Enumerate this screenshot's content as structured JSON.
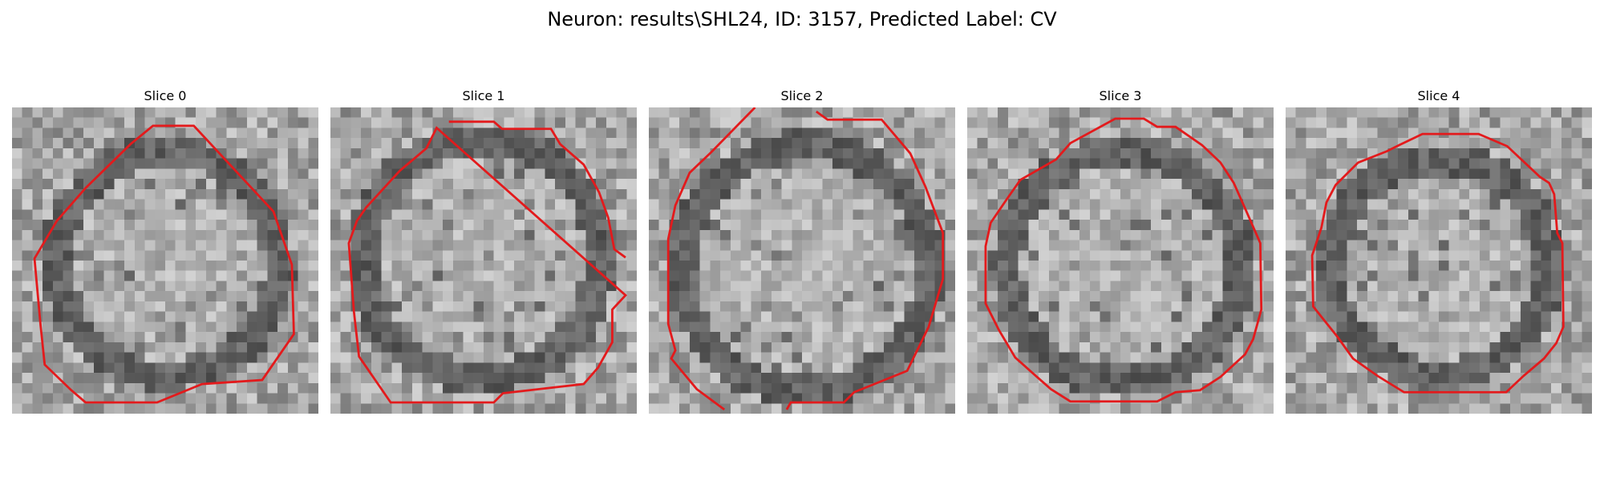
{
  "figure": {
    "title": "Neuron: results\\SHL24, ID: 3157, Predicted Label: CV"
  },
  "panels": [
    {
      "title": "Slice 0"
    },
    {
      "title": "Slice 1"
    },
    {
      "title": "Slice 2"
    },
    {
      "title": "Slice 3"
    },
    {
      "title": "Slice 4"
    }
  ],
  "colors": {
    "contour": "#e31a1c",
    "background": "#ffffff"
  }
}
